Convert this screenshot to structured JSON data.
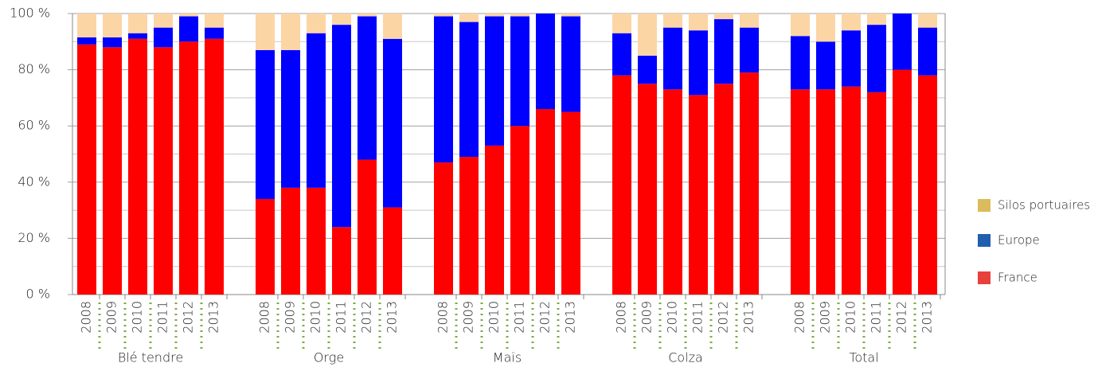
{
  "chart_data": {
    "type": "stacked_bar",
    "groups": [
      {
        "name": "Blé tendre",
        "categories": [
          "2008",
          "2009",
          "2010",
          "2011",
          "2012",
          "2013"
        ]
      },
      {
        "name": "Orge",
        "categories": [
          "2008",
          "2009",
          "2010",
          "2011",
          "2012",
          "2013"
        ]
      },
      {
        "name": "Maïs",
        "categories": [
          "2008",
          "2009",
          "2010",
          "2011",
          "2012",
          "2013"
        ]
      },
      {
        "name": "Colza",
        "categories": [
          "2008",
          "2009",
          "2010",
          "2011",
          "2012",
          "2013"
        ]
      },
      {
        "name": "Total",
        "categories": [
          "2008",
          "2009",
          "2010",
          "2011",
          "2012",
          "2013"
        ]
      }
    ],
    "series": [
      {
        "name": "France",
        "color": "#ff0000",
        "legend_color": "#e8413c",
        "values": [
          89,
          88,
          91,
          88,
          90,
          91,
          34,
          38,
          38,
          24,
          48,
          31,
          47,
          49,
          53,
          60,
          66,
          65,
          78,
          75,
          73,
          71,
          75,
          79,
          73,
          73,
          74,
          72,
          80,
          78
        ]
      },
      {
        "name": "Europe",
        "color": "#0000ff",
        "legend_color": "#1f5fae",
        "values": [
          2.5,
          3.5,
          2,
          7,
          9,
          4,
          53,
          49,
          55,
          72,
          51,
          60,
          52,
          48,
          46,
          39,
          34,
          34,
          15,
          10,
          22,
          23,
          23,
          16,
          19,
          17,
          20,
          24,
          20,
          17
        ]
      },
      {
        "name": "Silos portuaires",
        "color": "#fcd5a5",
        "legend_color": "#dcbb5c",
        "values": [
          8.5,
          8.5,
          7,
          5,
          1,
          5,
          13,
          13,
          7,
          4,
          1,
          9,
          1,
          3,
          1,
          1,
          0,
          1,
          7,
          15,
          5,
          6,
          2,
          5,
          8,
          10,
          6,
          4,
          0,
          5
        ]
      }
    ],
    "ylim": [
      0,
      100
    ],
    "yticks": [
      {
        "value": 0,
        "label": "0 %"
      },
      {
        "value": 20,
        "label": "20 %"
      },
      {
        "value": 40,
        "label": "40 %"
      },
      {
        "value": 60,
        "label": "60 %"
      },
      {
        "value": 80,
        "label": "80 %"
      },
      {
        "value": 100,
        "label": "100 %"
      }
    ],
    "yminor": [
      10,
      30,
      50,
      70,
      90
    ],
    "grid": true
  }
}
